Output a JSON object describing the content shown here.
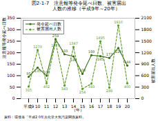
{
  "chart_data": {
    "type": "line",
    "title": "図2-1-7　注意報等発令延べ日数、被害届出",
    "subtitle": "　　　人数の推移（平成9年～20年）",
    "source": "資料：環境省「平成2 0年光化学大気汚染関係資料」",
    "xlabel": "（年）",
    "ylabel": "注意報等発令延べ日数",
    "y2label": "被害届出人数",
    "categories": [
      "平成9",
      "10",
      "11",
      "12",
      "13",
      "14",
      "15",
      "16",
      "17",
      "18",
      "19",
      "20"
    ],
    "series": [
      {
        "name": "発令延べ日数",
        "color": "#3a6b1a",
        "values": [
          95,
          135,
          100,
          259,
          193,
          184,
          108,
          189,
          185,
          177,
          220,
          144
        ],
        "axis": "y",
        "line_style": "solid",
        "marker": "o"
      },
      {
        "name": "被害届出人数",
        "color": "#5a9a2a",
        "values": [
          315,
          1270,
          402,
          1479,
          343,
          1347,
          254,
          393,
          1495,
          289,
          1910,
          400
        ],
        "axis": "y2",
        "line_style": "dashed",
        "marker": "o"
      }
    ],
    "ylim": [
      0,
      350
    ],
    "yticks": [
      0,
      50,
      100,
      150,
      200,
      250,
      300,
      350
    ],
    "y2lim": [
      0,
      2100
    ],
    "y2ticks": [
      0,
      300,
      600,
      900,
      1200,
      1500,
      1800,
      2100
    ],
    "data_labels": true,
    "legend": "upper left",
    "grid": false
  }
}
